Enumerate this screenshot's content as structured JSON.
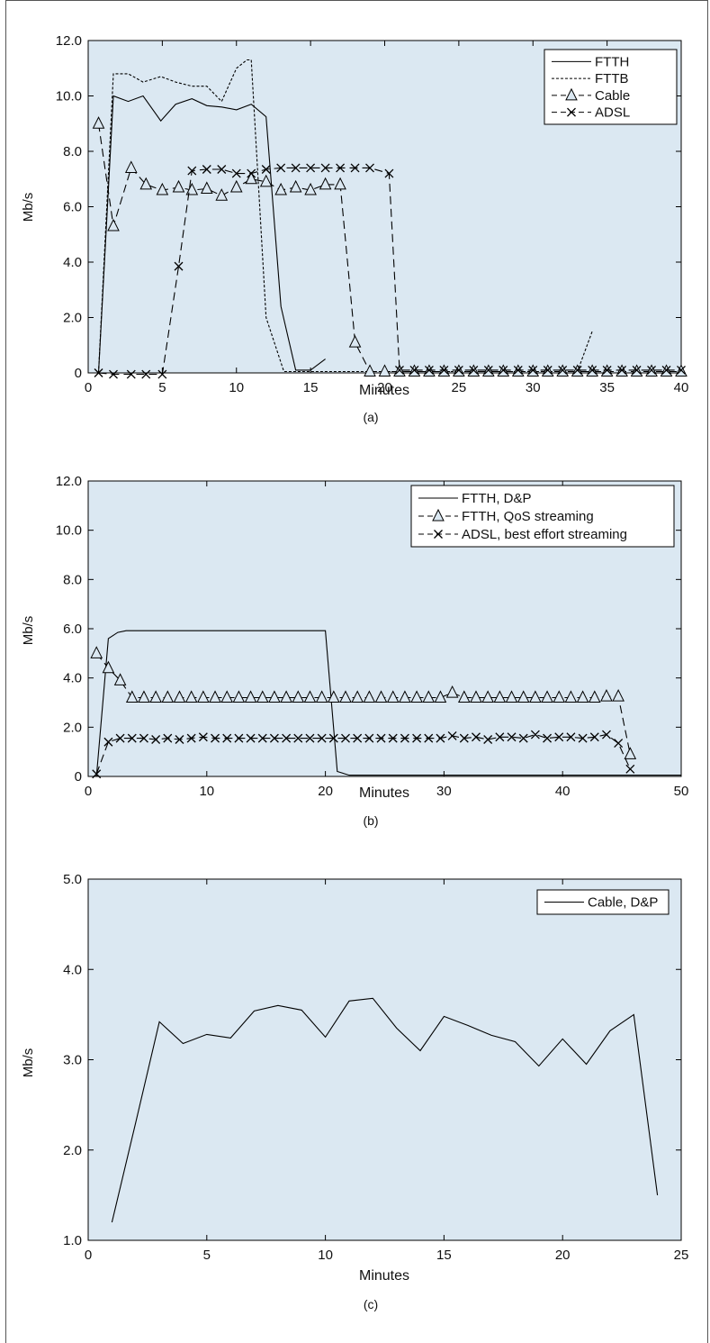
{
  "colors": {
    "plot_bg": "#dbe8f2",
    "axis": "#000000",
    "line": "#000000"
  },
  "chart_data": [
    {
      "type": "line",
      "panel_label": "(a)",
      "xlabel": "Minutes",
      "ylabel": "Mb/s",
      "xlim": [
        0,
        40
      ],
      "ylim": [
        0,
        12
      ],
      "x_ticks": [
        "0",
        "5",
        "10",
        "15",
        "20",
        "25",
        "30",
        "35",
        "40"
      ],
      "y_ticks": [
        "0",
        "2.0",
        "4.0",
        "6.0",
        "8.0",
        "10.0",
        "12.0"
      ],
      "legend_position": "top-right",
      "series": [
        {
          "name": "FTTH",
          "style": "solid",
          "marker": "none",
          "x": [
            0.7,
            1.7,
            2.7,
            3.7,
            4.9,
            5.9,
            7,
            8,
            9,
            10,
            11,
            12,
            13,
            14,
            15,
            16
          ],
          "y": [
            0,
            10.0,
            9.8,
            10.0,
            9.1,
            9.7,
            9.9,
            9.65,
            9.6,
            9.5,
            9.7,
            9.25,
            2.4,
            0.1,
            0.1,
            0.5
          ]
        },
        {
          "name": "FTTB",
          "style": "dotted",
          "marker": "none",
          "x": [
            0.7,
            1.7,
            2.7,
            3.7,
            4.9,
            5.9,
            7,
            8,
            9,
            10,
            10.7,
            11,
            12,
            13.2,
            15,
            17,
            18,
            19,
            20,
            33,
            34
          ],
          "y": [
            0,
            10.8,
            10.8,
            10.5,
            10.7,
            10.5,
            10.35,
            10.35,
            9.8,
            11.0,
            11.3,
            11.3,
            2.0,
            0.05,
            0.05,
            0.05,
            0.05,
            0.05,
            0.05,
            0.05,
            1.5
          ]
        },
        {
          "name": "Cable",
          "style": "dashed",
          "marker": "triangle",
          "x": [
            0.7,
            1.7,
            2.9,
            3.9,
            5,
            6.1,
            7,
            8,
            9,
            10,
            11,
            12,
            13,
            14,
            15,
            16,
            17,
            18,
            19,
            20,
            21,
            22,
            23,
            24,
            25,
            26,
            27,
            28,
            29,
            30,
            31,
            32,
            33,
            34,
            35,
            36,
            37,
            38,
            39,
            40
          ],
          "y": [
            9.0,
            5.3,
            7.4,
            6.8,
            6.6,
            6.7,
            6.6,
            6.65,
            6.4,
            6.7,
            7.0,
            6.9,
            6.6,
            6.7,
            6.6,
            6.8,
            6.8,
            1.1,
            0.05,
            0.05,
            0.05,
            0.05,
            0.05,
            0.05,
            0.05,
            0.05,
            0.05,
            0.05,
            0.05,
            0.05,
            0.05,
            0.05,
            0.05,
            0.05,
            0.05,
            0.05,
            0.05,
            0.05,
            0.05,
            0.05
          ]
        },
        {
          "name": "ADSL",
          "style": "dashed",
          "marker": "x",
          "x": [
            0.7,
            1.7,
            2.9,
            3.9,
            5,
            6.1,
            7,
            8,
            9,
            10,
            11,
            12,
            13,
            14,
            15,
            16,
            17,
            18,
            19,
            20.3,
            21,
            22,
            23,
            24,
            25,
            26,
            27,
            28,
            29,
            30,
            31,
            32,
            33,
            34,
            35,
            36,
            37,
            38,
            39,
            40
          ],
          "y": [
            0,
            -0.05,
            -0.05,
            -0.05,
            -0.05,
            3.85,
            7.3,
            7.35,
            7.35,
            7.2,
            7.2,
            7.35,
            7.4,
            7.4,
            7.4,
            7.4,
            7.4,
            7.4,
            7.4,
            7.2,
            0.1,
            0.1,
            0.1,
            0.1,
            0.1,
            0.1,
            0.1,
            0.1,
            0.1,
            0.1,
            0.1,
            0.1,
            0.1,
            0.1,
            0.1,
            0.1,
            0.1,
            0.1,
            0.1,
            0.1
          ]
        }
      ]
    },
    {
      "type": "line",
      "panel_label": "(b)",
      "xlabel": "Minutes",
      "ylabel": "Mb/s",
      "xlim": [
        0,
        50
      ],
      "ylim": [
        0,
        12
      ],
      "x_ticks": [
        "0",
        "10",
        "20",
        "30",
        "40",
        "50"
      ],
      "y_ticks": [
        "0",
        "2.0",
        "4.0",
        "6.0",
        "8.0",
        "10.0",
        "12.0"
      ],
      "legend_position": "top-right",
      "series": [
        {
          "name": "FTTH, D&P",
          "style": "solid",
          "marker": "none",
          "x": [
            0.7,
            1.7,
            2.5,
            3.2,
            4,
            10,
            20,
            21,
            22,
            30,
            40,
            50
          ],
          "y": [
            0,
            5.6,
            5.85,
            5.92,
            5.92,
            5.92,
            5.92,
            0.2,
            0.05,
            0.05,
            0.05,
            0.05
          ]
        },
        {
          "name": "FTTH, QoS streaming",
          "style": "dashed",
          "marker": "triangle",
          "x": [
            0.7,
            1.7,
            2.7,
            3.7,
            4.7,
            5.7,
            6.7,
            7.7,
            8.7,
            9.7,
            10.7,
            11.7,
            12.7,
            13.7,
            14.7,
            15.7,
            16.7,
            17.7,
            18.7,
            19.7,
            20.7,
            21.7,
            22.7,
            23.7,
            24.7,
            25.7,
            26.7,
            27.7,
            28.7,
            29.7,
            30.7,
            31.7,
            32.7,
            33.7,
            34.7,
            35.7,
            36.7,
            37.7,
            38.7,
            39.7,
            40.7,
            41.7,
            42.7,
            43.7,
            44.7,
            45.7
          ],
          "y": [
            5.0,
            4.4,
            3.9,
            3.2,
            3.2,
            3.2,
            3.2,
            3.2,
            3.2,
            3.2,
            3.2,
            3.2,
            3.2,
            3.2,
            3.2,
            3.2,
            3.2,
            3.2,
            3.2,
            3.2,
            3.2,
            3.2,
            3.2,
            3.2,
            3.2,
            3.2,
            3.2,
            3.2,
            3.2,
            3.2,
            3.4,
            3.2,
            3.2,
            3.2,
            3.2,
            3.2,
            3.2,
            3.2,
            3.2,
            3.2,
            3.2,
            3.2,
            3.2,
            3.25,
            3.25,
            0.9
          ]
        },
        {
          "name": "ADSL, best effort streaming",
          "style": "dashed",
          "marker": "x",
          "x": [
            0.7,
            1.7,
            2.7,
            3.7,
            4.7,
            5.7,
            6.7,
            7.7,
            8.7,
            9.7,
            10.7,
            11.7,
            12.7,
            13.7,
            14.7,
            15.7,
            16.7,
            17.7,
            18.7,
            19.7,
            20.7,
            21.7,
            22.7,
            23.7,
            24.7,
            25.7,
            26.7,
            27.7,
            28.7,
            29.7,
            30.7,
            31.7,
            32.7,
            33.7,
            34.7,
            35.7,
            36.7,
            37.7,
            38.7,
            39.7,
            40.7,
            41.7,
            42.7,
            43.7,
            44.7,
            45.7
          ],
          "y": [
            0.1,
            1.4,
            1.55,
            1.55,
            1.55,
            1.5,
            1.55,
            1.5,
            1.55,
            1.6,
            1.55,
            1.55,
            1.55,
            1.55,
            1.55,
            1.55,
            1.55,
            1.55,
            1.55,
            1.55,
            1.55,
            1.55,
            1.55,
            1.55,
            1.55,
            1.55,
            1.55,
            1.55,
            1.55,
            1.55,
            1.65,
            1.55,
            1.6,
            1.5,
            1.6,
            1.6,
            1.55,
            1.7,
            1.55,
            1.6,
            1.6,
            1.55,
            1.6,
            1.7,
            1.35,
            0.3
          ]
        }
      ]
    },
    {
      "type": "line",
      "panel_label": "(c)",
      "xlabel": "Minutes",
      "ylabel": "Mb/s",
      "xlim": [
        0,
        25
      ],
      "ylim": [
        1,
        5
      ],
      "x_ticks": [
        "0",
        "5",
        "10",
        "15",
        "20",
        "25"
      ],
      "y_ticks": [
        "1.0",
        "2.0",
        "3.0",
        "4.0",
        "5.0"
      ],
      "legend_position": "top-right",
      "series": [
        {
          "name": "Cable, D&P",
          "style": "solid",
          "marker": "none",
          "x": [
            1,
            2,
            3,
            4,
            5,
            6,
            7,
            8,
            9,
            10,
            11,
            12,
            13,
            14,
            15,
            16,
            17,
            18,
            19,
            20,
            21,
            22,
            23,
            24
          ],
          "y": [
            1.2,
            2.3,
            3.42,
            3.18,
            3.28,
            3.24,
            3.54,
            3.6,
            3.55,
            3.25,
            3.65,
            3.68,
            3.35,
            3.1,
            3.48,
            3.38,
            3.27,
            3.2,
            2.93,
            3.23,
            2.95,
            3.32,
            3.5,
            1.5
          ]
        }
      ]
    }
  ]
}
